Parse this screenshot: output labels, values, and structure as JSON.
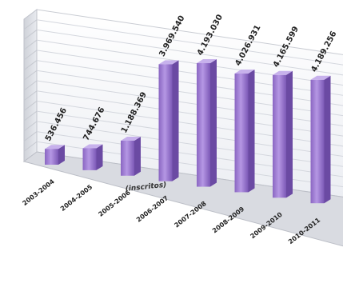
{
  "chart_data": {
    "type": "bar",
    "title": "",
    "xlabel": "",
    "ylabel": "",
    "categories": [
      "2003-2004",
      "2004-2005",
      "2005-2006",
      "2006-2007",
      "2007-2008",
      "2008-2009",
      "2009-2010",
      "2010-2011"
    ],
    "values": [
      536456,
      744676,
      1188369,
      3969540,
      4193030,
      4026931,
      4165599,
      4189256
    ],
    "data_labels": [
      "536.456",
      "744.676",
      "1.188.369",
      "3.969.540",
      "4.193.030",
      "4.026.931",
      "4.165.599",
      "4.189.256"
    ],
    "annotation": "(inscritos)",
    "ylim": [
      0,
      7000000
    ],
    "grid": true,
    "legend": "none",
    "bar_color": "#9a78cf",
    "style": "3d"
  }
}
